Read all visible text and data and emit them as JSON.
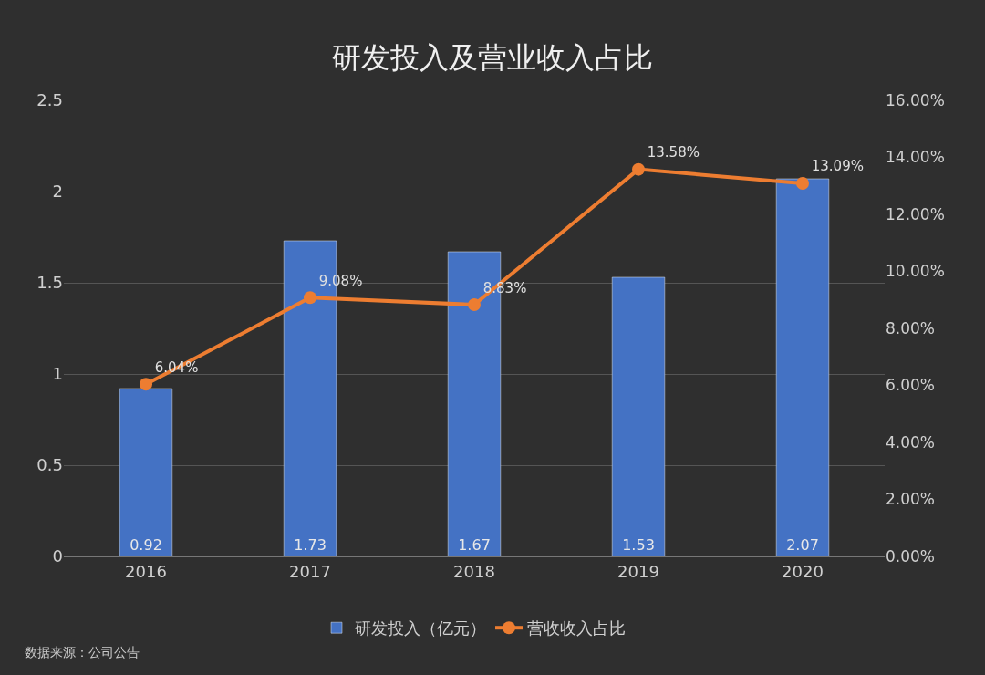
{
  "chart_data": {
    "type": "bar",
    "title": "研发投入及营业收入占比",
    "categories": [
      "2016",
      "2017",
      "2018",
      "2019",
      "2020"
    ],
    "series": [
      {
        "name": "研发投入（亿元）",
        "color": "#4472c4",
        "values": [
          0.92,
          1.73,
          1.67,
          1.53,
          2.07
        ],
        "data_labels": true
      },
      {
        "name": "营收收入占比",
        "type": "line",
        "axis": "y2",
        "color": "#ed7d31",
        "values": [
          6.04,
          9.08,
          8.83,
          13.58,
          13.09
        ],
        "value_labels": [
          "6.04%",
          "9.08%",
          "8.83%",
          "13.58%",
          "13.09%"
        ],
        "marker": "circle"
      }
    ],
    "ylim": [
      0,
      2.5
    ],
    "yticks": [
      0,
      0.5,
      1,
      1.5,
      2,
      2.5
    ],
    "y2lim": [
      0,
      16
    ],
    "y2ticks": [
      {
        "value": 0,
        "label": "0.00%"
      },
      {
        "value": 2,
        "label": "2.00%"
      },
      {
        "value": 4,
        "label": "4.00%"
      },
      {
        "value": 6,
        "label": "6.00%"
      },
      {
        "value": 8,
        "label": "8.00%"
      },
      {
        "value": 10,
        "label": "10.00%"
      },
      {
        "value": 12,
        "label": "12.00%"
      },
      {
        "value": 14,
        "label": "14.00%"
      },
      {
        "value": 16,
        "label": "16.00%"
      }
    ],
    "grid": "y",
    "legend": "bottom",
    "annotations": [
      "数据来源：公司公告"
    ]
  }
}
